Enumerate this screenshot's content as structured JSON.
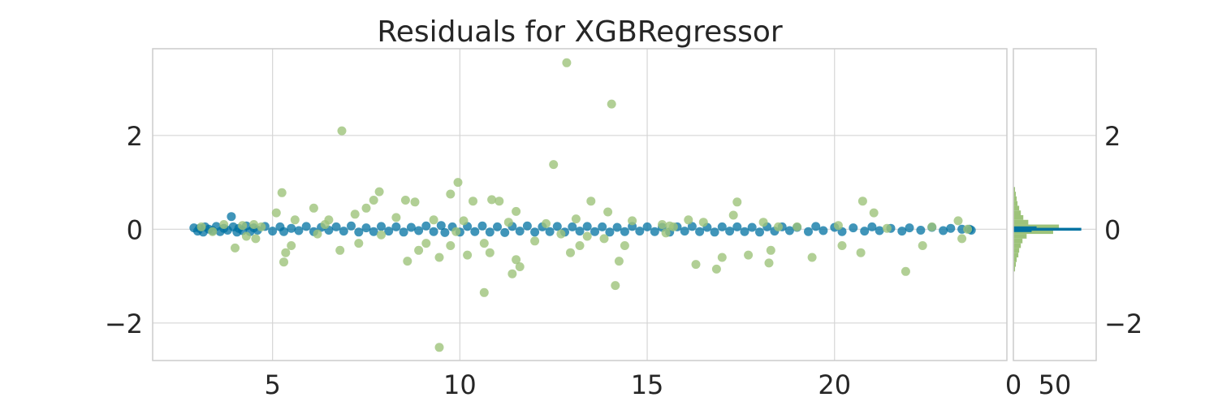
{
  "chart_data": {
    "type": "scatter",
    "title": "Residuals for XGBRegressor",
    "xlabel": "",
    "ylabel": "",
    "xlim": [
      1.8,
      24.6
    ],
    "ylim": [
      -2.8,
      3.85
    ],
    "x_ticks": [
      5,
      10,
      15,
      20
    ],
    "x_tick_labels": [
      "5",
      "10",
      "15",
      "20"
    ],
    "y_ticks": [
      -2,
      0,
      2
    ],
    "y_tick_labels": [
      "−2",
      "0",
      "2"
    ],
    "grid": true,
    "legend": "none",
    "colors": {
      "train": "#0072A2",
      "test": "#9DC37A",
      "grid": "#D5D5D5",
      "frame": "#CCCCCC"
    },
    "series": [
      {
        "points": [
          [
            2.9,
            0.03
          ],
          [
            3.0,
            -0.04
          ],
          [
            3.05,
            0.02
          ],
          [
            3.15,
            -0.06
          ],
          [
            3.2,
            0.05
          ],
          [
            3.3,
            0.0
          ],
          [
            3.4,
            -0.03
          ],
          [
            3.5,
            0.06
          ],
          [
            3.6,
            -0.05
          ],
          [
            3.7,
            0.02
          ],
          [
            3.8,
            -0.02
          ],
          [
            3.9,
            0.27
          ],
          [
            3.95,
            0.05
          ],
          [
            4.05,
            -0.06
          ],
          [
            4.1,
            0.02
          ],
          [
            4.2,
            -0.03
          ],
          [
            4.3,
            0.07
          ],
          [
            4.4,
            -0.05
          ],
          [
            4.5,
            0.03
          ],
          [
            4.6,
            -0.02
          ],
          [
            4.8,
            0.06
          ],
          [
            5.0,
            -0.04
          ],
          [
            5.2,
            0.05
          ],
          [
            5.3,
            -0.05
          ],
          [
            5.5,
            0.02
          ],
          [
            5.7,
            -0.03
          ],
          [
            5.9,
            0.06
          ],
          [
            6.1,
            -0.05
          ],
          [
            6.3,
            0.04
          ],
          [
            6.5,
            -0.02
          ],
          [
            6.7,
            0.05
          ],
          [
            6.9,
            -0.04
          ],
          [
            7.1,
            0.07
          ],
          [
            7.3,
            -0.06
          ],
          [
            7.5,
            0.03
          ],
          [
            7.7,
            -0.05
          ],
          [
            7.9,
            0.06
          ],
          [
            8.1,
            -0.04
          ],
          [
            8.3,
            0.05
          ],
          [
            8.5,
            -0.06
          ],
          [
            8.7,
            0.04
          ],
          [
            8.9,
            -0.03
          ],
          [
            9.1,
            0.07
          ],
          [
            9.3,
            -0.05
          ],
          [
            9.5,
            0.08
          ],
          [
            9.6,
            -0.07
          ],
          [
            9.8,
            0.05
          ],
          [
            10.0,
            -0.06
          ],
          [
            10.2,
            0.06
          ],
          [
            10.4,
            -0.05
          ],
          [
            10.6,
            0.07
          ],
          [
            10.8,
            -0.06
          ],
          [
            11.0,
            0.05
          ],
          [
            11.2,
            -0.07
          ],
          [
            11.4,
            0.06
          ],
          [
            11.6,
            -0.04
          ],
          [
            11.8,
            0.07
          ],
          [
            12.0,
            -0.06
          ],
          [
            12.2,
            0.05
          ],
          [
            12.4,
            -0.05
          ],
          [
            12.6,
            0.06
          ],
          [
            12.8,
            -0.06
          ],
          [
            13.0,
            0.05
          ],
          [
            13.2,
            -0.04
          ],
          [
            13.4,
            0.06
          ],
          [
            13.6,
            -0.05
          ],
          [
            13.8,
            0.05
          ],
          [
            14.0,
            -0.06
          ],
          [
            14.2,
            0.04
          ],
          [
            14.4,
            -0.05
          ],
          [
            14.6,
            0.06
          ],
          [
            14.8,
            -0.04
          ],
          [
            15.0,
            0.05
          ],
          [
            15.2,
            -0.05
          ],
          [
            15.4,
            0.04
          ],
          [
            15.6,
            -0.06
          ],
          [
            15.8,
            0.05
          ],
          [
            16.0,
            -0.04
          ],
          [
            16.2,
            0.06
          ],
          [
            16.4,
            -0.05
          ],
          [
            16.6,
            0.04
          ],
          [
            16.8,
            -0.06
          ],
          [
            17.0,
            0.05
          ],
          [
            17.2,
            -0.04
          ],
          [
            17.4,
            0.05
          ],
          [
            17.6,
            -0.05
          ],
          [
            17.8,
            0.04
          ],
          [
            18.0,
            -0.06
          ],
          [
            18.2,
            0.05
          ],
          [
            18.4,
            -0.04
          ],
          [
            18.6,
            0.05
          ],
          [
            18.8,
            -0.03
          ],
          [
            19.0,
            0.04
          ],
          [
            19.3,
            -0.05
          ],
          [
            19.5,
            0.06
          ],
          [
            19.7,
            -0.03
          ],
          [
            20.0,
            0.04
          ],
          [
            20.2,
            -0.05
          ],
          [
            20.5,
            0.03
          ],
          [
            20.8,
            -0.04
          ],
          [
            21.0,
            0.05
          ],
          [
            21.2,
            -0.03
          ],
          [
            21.5,
            0.02
          ],
          [
            21.8,
            -0.04
          ],
          [
            22.0,
            0.03
          ],
          [
            22.3,
            -0.02
          ],
          [
            22.6,
            0.04
          ],
          [
            22.9,
            -0.03
          ],
          [
            23.1,
            0.02
          ],
          [
            23.4,
            0.0
          ],
          [
            23.6,
            0.0
          ],
          [
            23.65,
            -0.02
          ]
        ]
      },
      {
        "points": [
          [
            12.85,
            3.55
          ],
          [
            14.05,
            2.67
          ],
          [
            6.85,
            2.1
          ],
          [
            12.5,
            1.38
          ],
          [
            9.95,
            1.0
          ],
          [
            9.75,
            0.75
          ],
          [
            7.85,
            0.8
          ],
          [
            7.7,
            0.62
          ],
          [
            5.25,
            0.78
          ],
          [
            6.1,
            0.45
          ],
          [
            8.55,
            0.62
          ],
          [
            8.8,
            0.58
          ],
          [
            10.35,
            0.6
          ],
          [
            10.85,
            0.63
          ],
          [
            11.05,
            0.6
          ],
          [
            13.5,
            0.6
          ],
          [
            17.4,
            0.58
          ],
          [
            20.75,
            0.6
          ],
          [
            5.1,
            0.35
          ],
          [
            6.5,
            0.2
          ],
          [
            7.2,
            0.32
          ],
          [
            11.5,
            0.38
          ],
          [
            13.95,
            0.37
          ],
          [
            21.05,
            0.35
          ],
          [
            4.0,
            -0.4
          ],
          [
            4.3,
            -0.15
          ],
          [
            4.55,
            -0.2
          ],
          [
            5.35,
            -0.5
          ],
          [
            5.3,
            -0.7
          ],
          [
            5.5,
            -0.35
          ],
          [
            6.8,
            -0.45
          ],
          [
            7.3,
            -0.3
          ],
          [
            8.6,
            -0.68
          ],
          [
            8.9,
            -0.45
          ],
          [
            9.1,
            -0.3
          ],
          [
            9.45,
            -0.6
          ],
          [
            9.75,
            -0.35
          ],
          [
            10.2,
            -0.55
          ],
          [
            10.65,
            -0.3
          ],
          [
            10.8,
            -0.5
          ],
          [
            11.4,
            -0.95
          ],
          [
            11.6,
            -0.8
          ],
          [
            11.5,
            -0.65
          ],
          [
            12.0,
            -0.25
          ],
          [
            12.95,
            -0.5
          ],
          [
            13.2,
            -0.35
          ],
          [
            13.85,
            -0.2
          ],
          [
            14.25,
            -0.68
          ],
          [
            14.4,
            -0.35
          ],
          [
            16.3,
            -0.75
          ],
          [
            16.85,
            -0.85
          ],
          [
            17.0,
            -0.6
          ],
          [
            17.7,
            -0.55
          ],
          [
            18.25,
            -0.72
          ],
          [
            18.3,
            -0.45
          ],
          [
            19.4,
            -0.6
          ],
          [
            20.2,
            -0.35
          ],
          [
            20.7,
            -0.5
          ],
          [
            21.9,
            -0.9
          ],
          [
            22.35,
            -0.35
          ],
          [
            10.65,
            -1.35
          ],
          [
            14.15,
            -1.2
          ],
          [
            9.45,
            -2.52
          ],
          [
            3.1,
            0.05
          ],
          [
            3.4,
            -0.05
          ],
          [
            3.7,
            0.1
          ],
          [
            4.2,
            0.08
          ],
          [
            4.5,
            0.1
          ],
          [
            4.7,
            0.05
          ],
          [
            5.6,
            0.2
          ],
          [
            6.4,
            0.1
          ],
          [
            7.5,
            0.45
          ],
          [
            8.3,
            0.25
          ],
          [
            9.3,
            0.2
          ],
          [
            10.1,
            0.18
          ],
          [
            11.3,
            0.15
          ],
          [
            12.3,
            0.12
          ],
          [
            13.1,
            0.22
          ],
          [
            14.6,
            0.18
          ],
          [
            15.4,
            0.1
          ],
          [
            15.7,
            0.05
          ],
          [
            16.1,
            0.2
          ],
          [
            16.5,
            0.15
          ],
          [
            17.3,
            0.3
          ],
          [
            18.1,
            0.15
          ],
          [
            19.0,
            0.05
          ],
          [
            20.1,
            0.08
          ],
          [
            21.4,
            0.02
          ],
          [
            22.6,
            0.05
          ],
          [
            23.3,
            0.18
          ],
          [
            23.4,
            -0.2
          ],
          [
            23.55,
            0.0
          ],
          [
            9.9,
            -0.05
          ],
          [
            12.7,
            -0.1
          ],
          [
            15.5,
            -0.08
          ],
          [
            15.6,
            0.07
          ],
          [
            18.5,
            0.05
          ],
          [
            6.2,
            -0.1
          ],
          [
            7.9,
            -0.12
          ],
          [
            13.4,
            -0.15
          ]
        ]
      }
    ],
    "histogram": {
      "x_ticks": [
        0,
        50
      ],
      "x_tick_labels": [
        "0",
        "50"
      ],
      "xlim": [
        0,
        100
      ],
      "train": [
        {
          "lo": -0.03,
          "hi": 0.03,
          "count": 82
        },
        {
          "lo": 0.03,
          "hi": 0.06,
          "count": 28
        },
        {
          "lo": -0.06,
          "hi": -0.03,
          "count": 22
        }
      ],
      "test": [
        {
          "lo": 0.8,
          "hi": 0.9,
          "count": 2
        },
        {
          "lo": 0.7,
          "hi": 0.8,
          "count": 3
        },
        {
          "lo": 0.6,
          "hi": 0.7,
          "count": 4
        },
        {
          "lo": 0.5,
          "hi": 0.6,
          "count": 5
        },
        {
          "lo": 0.4,
          "hi": 0.5,
          "count": 7
        },
        {
          "lo": 0.3,
          "hi": 0.4,
          "count": 9
        },
        {
          "lo": 0.2,
          "hi": 0.3,
          "count": 12
        },
        {
          "lo": 0.1,
          "hi": 0.2,
          "count": 18
        },
        {
          "lo": 0.0,
          "hi": 0.1,
          "count": 55
        },
        {
          "lo": -0.1,
          "hi": 0.0,
          "count": 48
        },
        {
          "lo": -0.2,
          "hi": -0.1,
          "count": 16
        },
        {
          "lo": -0.3,
          "hi": -0.2,
          "count": 11
        },
        {
          "lo": -0.4,
          "hi": -0.3,
          "count": 9
        },
        {
          "lo": -0.5,
          "hi": -0.4,
          "count": 7
        },
        {
          "lo": -0.6,
          "hi": -0.5,
          "count": 6
        },
        {
          "lo": -0.7,
          "hi": -0.6,
          "count": 4
        },
        {
          "lo": -0.8,
          "hi": -0.7,
          "count": 3
        },
        {
          "lo": -0.9,
          "hi": -0.8,
          "count": 2
        }
      ]
    }
  }
}
